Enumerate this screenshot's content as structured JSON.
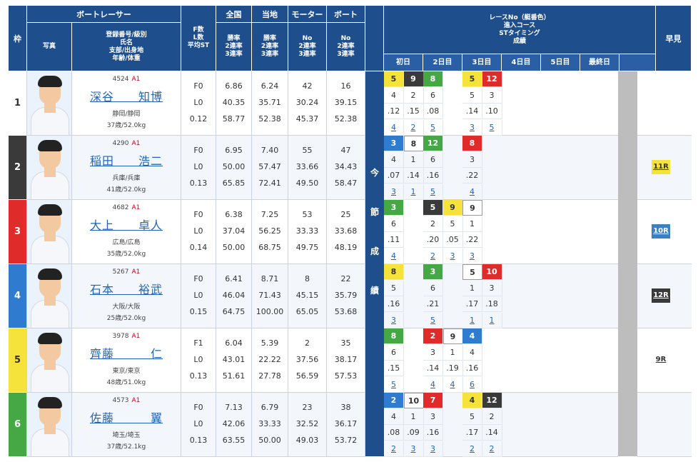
{
  "headers": {
    "waku": "枠",
    "racer": "ボートレーサー",
    "photo": "写真",
    "racer_sub": [
      "登録番号/級別",
      "氏名",
      "支部/出身地",
      "年齢/体重"
    ],
    "fl": [
      "F数",
      "L数",
      "平均ST"
    ],
    "zenkoku": "全国",
    "touchi": "当地",
    "motor": "モーター",
    "boat": "ボート",
    "rate3": [
      "勝率",
      "2連率",
      "3連率"
    ],
    "rate_no": [
      "No",
      "2連率",
      "3連率"
    ],
    "race_info": [
      "レースNo（艇番色）",
      "進入コース",
      "STタイミング",
      "成績"
    ],
    "days": [
      "初日",
      "2日目",
      "3日目",
      "4日目",
      "5日目",
      "最終日"
    ],
    "soken": "早見",
    "konsetsu": [
      "今",
      "節",
      "成",
      "績"
    ]
  },
  "rows": [
    {
      "waku": "1",
      "waku_color": "#ffffff",
      "waku_text": "#333333",
      "reg": "4524",
      "cls": "A1",
      "name": "深谷　　知博",
      "branch": "静岡/静岡",
      "age": "37歳/52.0kg",
      "f": "F0",
      "l": "L0",
      "st": "0.12",
      "zen": [
        "6.86",
        "40.35",
        "58.77"
      ],
      "toc": [
        "6.24",
        "35.71",
        "52.38"
      ],
      "mot": [
        "42",
        "30.24",
        "45.37"
      ],
      "boa": [
        "16",
        "39.15",
        "52.38"
      ],
      "races": [
        {
          "c": 0,
          "no": "5",
          "w": 5,
          "course": "4",
          "st": ".12",
          "res": "4"
        },
        {
          "c": 1,
          "no": "9",
          "w": 2,
          "course": "2",
          "st": ".15",
          "res": "2"
        },
        {
          "c": 2,
          "no": "8",
          "w": 6,
          "course": "6",
          "st": ".08",
          "res": "5"
        },
        {
          "c": 4,
          "no": "5",
          "w": 5,
          "course": "5",
          "st": ".14",
          "res": "3"
        },
        {
          "c": 5,
          "no": "12",
          "w": 3,
          "course": "3",
          "st": ".10",
          "res": "5"
        }
      ],
      "soken": ""
    },
    {
      "waku": "2",
      "waku_color": "#3a3a3a",
      "waku_text": "#ffffff",
      "reg": "4290",
      "cls": "A1",
      "name": "稲田　　浩二",
      "branch": "兵庫/兵庫",
      "age": "41歳/52.0kg",
      "f": "F0",
      "l": "L0",
      "st": "0.13",
      "zen": [
        "6.95",
        "50.00",
        "65.85"
      ],
      "toc": [
        "7.40",
        "57.47",
        "72.41"
      ],
      "mot": [
        "55",
        "33.66",
        "49.50"
      ],
      "boa": [
        "47",
        "34.43",
        "58.47"
      ],
      "races": [
        {
          "c": 0,
          "no": "3",
          "w": 4,
          "course": "4",
          "st": ".07",
          "res": "3"
        },
        {
          "c": 1,
          "no": "8",
          "w": 1,
          "course": "1",
          "st": ".14",
          "res": "1"
        },
        {
          "c": 2,
          "no": "12",
          "w": 6,
          "course": "6",
          "st": ".16",
          "res": "5"
        },
        {
          "c": 4,
          "no": "8",
          "w": 3,
          "course": "3",
          "st": ".22",
          "res": "4"
        }
      ],
      "soken": "11R",
      "soken_cls": "b5"
    },
    {
      "waku": "3",
      "waku_color": "#e02b2b",
      "waku_text": "#ffffff",
      "reg": "4682",
      "cls": "A1",
      "name": "大上　　卓人",
      "branch": "広島/広島",
      "age": "35歳/52.0kg",
      "f": "F0",
      "l": "L0",
      "st": "0.14",
      "zen": [
        "6.38",
        "37.04",
        "50.00"
      ],
      "toc": [
        "7.25",
        "56.25",
        "68.75"
      ],
      "mot": [
        "53",
        "33.33",
        "49.75"
      ],
      "boa": [
        "25",
        "33.68",
        "48.19"
      ],
      "races": [
        {
          "c": 0,
          "no": "3",
          "w": 6,
          "course": "6",
          "st": ".11",
          "res": "4"
        },
        {
          "c": 2,
          "no": "5",
          "w": 2,
          "course": "2",
          "st": ".20",
          "res": "2"
        },
        {
          "c": 3,
          "no": "9",
          "w": 5,
          "course": "5",
          "st": ".05",
          "res": "3"
        },
        {
          "c": 4,
          "no": "9",
          "w": 1,
          "course": "1",
          "st": ".22",
          "res": "3"
        }
      ],
      "soken": "10R",
      "soken_cls": "b4"
    },
    {
      "waku": "4",
      "waku_color": "#2e7bd0",
      "waku_text": "#ffffff",
      "reg": "5267",
      "cls": "A1",
      "name": "石本　　裕武",
      "branch": "大阪/大阪",
      "age": "25歳/52.0kg",
      "f": "F0",
      "l": "L0",
      "st": "0.15",
      "zen": [
        "6.41",
        "46.04",
        "64.75"
      ],
      "toc": [
        "8.71",
        "71.43",
        "100.00"
      ],
      "mot": [
        "8",
        "45.15",
        "65.05"
      ],
      "boa": [
        "22",
        "35.79",
        "53.68"
      ],
      "races": [
        {
          "c": 0,
          "no": "8",
          "w": 5,
          "course": "5",
          "st": ".16",
          "res": "3"
        },
        {
          "c": 2,
          "no": "3",
          "w": 6,
          "course": "6",
          "st": ".21",
          "res": "5"
        },
        {
          "c": 4,
          "no": "5",
          "w": 1,
          "course": "1",
          "st": ".17",
          "res": "1"
        },
        {
          "c": 5,
          "no": "10",
          "w": 3,
          "course": "3",
          "st": ".18",
          "res": "1"
        }
      ],
      "soken": "12R",
      "soken_cls": "b2"
    },
    {
      "waku": "5",
      "waku_color": "#f5e23b",
      "waku_text": "#333333",
      "reg": "3978",
      "cls": "A1",
      "name": "齊藤　　　仁",
      "branch": "東京/東京",
      "age": "48歳/51.0kg",
      "f": "F1",
      "l": "L0",
      "st": "0.13",
      "zen": [
        "6.04",
        "43.01",
        "51.61"
      ],
      "toc": [
        "5.39",
        "22.22",
        "27.78"
      ],
      "mot": [
        "2",
        "37.56",
        "56.59"
      ],
      "boa": [
        "35",
        "38.17",
        "57.53"
      ],
      "races": [
        {
          "c": 0,
          "no": "8",
          "w": 6,
          "course": "6",
          "st": ".15",
          "res": "5"
        },
        {
          "c": 2,
          "no": "2",
          "w": 3,
          "course": "3",
          "st": ".14",
          "res": "4"
        },
        {
          "c": 3,
          "no": "9",
          "w": 1,
          "course": "1",
          "st": ".19",
          "res": "4"
        },
        {
          "c": 4,
          "no": "4",
          "w": 4,
          "course": "4",
          "st": ".16",
          "res": "6"
        }
      ],
      "soken": "9R",
      "soken_cls": "b1"
    },
    {
      "waku": "6",
      "waku_color": "#46a844",
      "waku_text": "#ffffff",
      "reg": "4573",
      "cls": "A1",
      "name": "佐藤　　　翼",
      "branch": "埼玉/埼玉",
      "age": "37歳/52.1kg",
      "f": "F0",
      "l": "L0",
      "st": "0.13",
      "zen": [
        "7.13",
        "42.06",
        "63.55"
      ],
      "toc": [
        "6.79",
        "33.33",
        "50.00"
      ],
      "mot": [
        "23",
        "32.52",
        "49.03"
      ],
      "boa": [
        "38",
        "36.17",
        "53.72"
      ],
      "races": [
        {
          "c": 0,
          "no": "2",
          "w": 4,
          "course": "4",
          "st": ".08",
          "res": "2"
        },
        {
          "c": 1,
          "no": "10",
          "w": 1,
          "course": "1",
          "st": ".09",
          "res": "3"
        },
        {
          "c": 2,
          "no": "7",
          "w": 3,
          "course": "3",
          "st": ".16",
          "res": "3"
        },
        {
          "c": 4,
          "no": "4",
          "w": 5,
          "course": "5",
          "st": ".17",
          "res": "2"
        },
        {
          "c": 5,
          "no": "12",
          "w": 2,
          "course": "2",
          "st": ".14",
          "res": "2"
        }
      ],
      "soken": ""
    }
  ]
}
